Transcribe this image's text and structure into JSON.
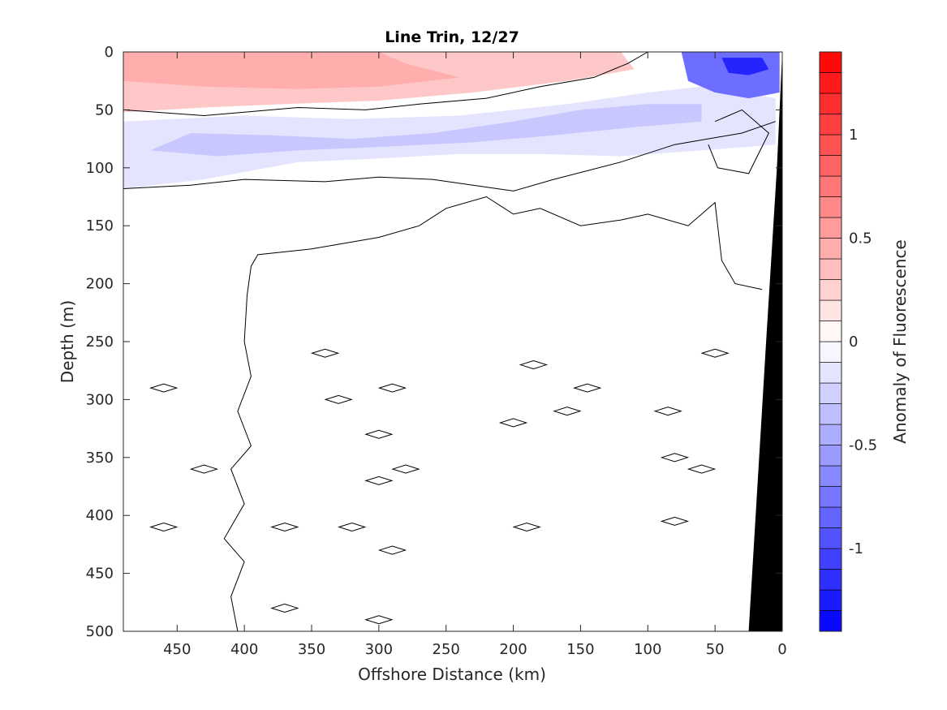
{
  "chart_data": {
    "type": "heatmap",
    "title": "Line Trin, 12/27",
    "xlabel": "Offshore Distance (km)",
    "ylabel": "Depth (m)",
    "colorbar_label": "Anomaly of Fluorescence",
    "x_reversed": true,
    "y_reversed": true,
    "xlim": [
      490,
      0
    ],
    "ylim": [
      500,
      0
    ],
    "xticks": [
      450,
      400,
      350,
      300,
      250,
      200,
      150,
      100,
      50,
      0
    ],
    "xticklabels": [
      "450",
      "400",
      "350",
      "300",
      "250",
      "200",
      "150",
      "100",
      "50",
      "0"
    ],
    "yticks": [
      0,
      50,
      100,
      150,
      200,
      250,
      300,
      350,
      400,
      450,
      500
    ],
    "yticklabels": [
      "0",
      "50",
      "100",
      "150",
      "200",
      "250",
      "300",
      "350",
      "400",
      "450",
      "500"
    ],
    "colorbar": {
      "range": [
        -1.4,
        1.4
      ],
      "ticks": [
        -1,
        -0.5,
        0,
        0.5,
        1
      ],
      "ticklabels": [
        "-1",
        "-0.5",
        "0",
        "0.5",
        "1"
      ],
      "levels": 28,
      "negative_color": "#0000ff",
      "positive_color": "#ff0000",
      "zero_color": "#ffffff"
    },
    "colors": {
      "positive_band": "#f8a8a8",
      "positive_light": "#fde0e0",
      "negative_light": "#e8e8fc",
      "negative_mid": "#c9c9f8",
      "negative_strong": "#2f2ff6",
      "bathymetry": "#000000"
    },
    "filled_regions": [
      {
        "label": "surface positive anomaly",
        "value": 0.3,
        "points": [
          [
            490,
            0
          ],
          [
            120,
            0
          ],
          [
            110,
            15
          ],
          [
            160,
            25
          ],
          [
            230,
            35
          ],
          [
            300,
            42
          ],
          [
            370,
            45
          ],
          [
            430,
            48
          ],
          [
            490,
            52
          ]
        ]
      },
      {
        "label": "surface positive anomaly core",
        "value": 0.45,
        "points": [
          [
            490,
            0
          ],
          [
            300,
            0
          ],
          [
            280,
            10
          ],
          [
            240,
            22
          ],
          [
            300,
            30
          ],
          [
            360,
            32
          ],
          [
            430,
            30
          ],
          [
            490,
            25
          ]
        ]
      },
      {
        "label": "subsurface negative anomaly",
        "value": -0.15,
        "points": [
          [
            490,
            60
          ],
          [
            400,
            55
          ],
          [
            320,
            58
          ],
          [
            240,
            55
          ],
          [
            160,
            45
          ],
          [
            100,
            35
          ],
          [
            60,
            30
          ],
          [
            30,
            35
          ],
          [
            5,
            40
          ],
          [
            5,
            80
          ],
          [
            60,
            85
          ],
          [
            120,
            90
          ],
          [
            180,
            88
          ],
          [
            240,
            88
          ],
          [
            300,
            92
          ],
          [
            360,
            95
          ],
          [
            430,
            110
          ],
          [
            490,
            118
          ]
        ]
      },
      {
        "label": "subsurface negative anomaly core",
        "value": -0.3,
        "points": [
          [
            440,
            70
          ],
          [
            380,
            72
          ],
          [
            320,
            75
          ],
          [
            260,
            70
          ],
          [
            200,
            60
          ],
          [
            150,
            50
          ],
          [
            100,
            45
          ],
          [
            60,
            45
          ],
          [
            60,
            60
          ],
          [
            110,
            65
          ],
          [
            170,
            72
          ],
          [
            230,
            78
          ],
          [
            300,
            82
          ],
          [
            360,
            85
          ],
          [
            420,
            90
          ],
          [
            470,
            85
          ]
        ]
      },
      {
        "label": "nearshore negative anomaly",
        "value": -0.8,
        "points": [
          [
            75,
            0
          ],
          [
            2,
            0
          ],
          [
            2,
            35
          ],
          [
            25,
            40
          ],
          [
            50,
            35
          ],
          [
            70,
            25
          ]
        ]
      },
      {
        "label": "nearshore negative anomaly core",
        "value": -1.2,
        "points": [
          [
            45,
            5
          ],
          [
            15,
            5
          ],
          [
            10,
            15
          ],
          [
            25,
            20
          ],
          [
            40,
            18
          ]
        ]
      }
    ],
    "zero_contours": [
      [
        [
          490,
          50
        ],
        [
          430,
          55
        ],
        [
          400,
          52
        ],
        [
          360,
          48
        ],
        [
          310,
          50
        ],
        [
          270,
          45
        ],
        [
          220,
          40
        ],
        [
          180,
          30
        ],
        [
          140,
          22
        ],
        [
          115,
          10
        ],
        [
          100,
          0
        ]
      ],
      [
        [
          490,
          118
        ],
        [
          440,
          115
        ],
        [
          400,
          110
        ],
        [
          340,
          112
        ],
        [
          300,
          108
        ],
        [
          260,
          110
        ],
        [
          230,
          115
        ],
        [
          200,
          120
        ],
        [
          170,
          110
        ],
        [
          120,
          95
        ],
        [
          80,
          80
        ],
        [
          30,
          70
        ],
        [
          5,
          60
        ]
      ],
      [
        [
          405,
          500
        ],
        [
          410,
          470
        ],
        [
          400,
          440
        ],
        [
          415,
          420
        ],
        [
          400,
          390
        ],
        [
          410,
          360
        ],
        [
          395,
          340
        ],
        [
          405,
          310
        ],
        [
          395,
          280
        ],
        [
          400,
          250
        ],
        [
          398,
          210
        ],
        [
          395,
          185
        ],
        [
          390,
          175
        ],
        [
          350,
          170
        ],
        [
          300,
          160
        ],
        [
          270,
          150
        ],
        [
          250,
          135
        ],
        [
          220,
          125
        ],
        [
          200,
          140
        ],
        [
          180,
          135
        ],
        [
          150,
          150
        ],
        [
          120,
          145
        ],
        [
          100,
          140
        ],
        [
          70,
          150
        ],
        [
          50,
          130
        ],
        [
          45,
          180
        ],
        [
          35,
          200
        ],
        [
          15,
          205
        ]
      ],
      [
        [
          50,
          60
        ],
        [
          30,
          50
        ],
        [
          10,
          70
        ],
        [
          25,
          105
        ],
        [
          48,
          100
        ],
        [
          55,
          80
        ]
      ]
    ],
    "contour_islands": [
      [
        460,
        290
      ],
      [
        430,
        360
      ],
      [
        460,
        410
      ],
      [
        370,
        410
      ],
      [
        340,
        260
      ],
      [
        330,
        300
      ],
      [
        320,
        410
      ],
      [
        300,
        330
      ],
      [
        300,
        370
      ],
      [
        290,
        290
      ],
      [
        290,
        430
      ],
      [
        280,
        360
      ],
      [
        200,
        320
      ],
      [
        185,
        270
      ],
      [
        190,
        410
      ],
      [
        160,
        310
      ],
      [
        145,
        290
      ],
      [
        85,
        310
      ],
      [
        80,
        350
      ],
      [
        80,
        405
      ],
      [
        60,
        360
      ],
      [
        50,
        260
      ],
      [
        370,
        480
      ],
      [
        300,
        490
      ]
    ],
    "bathymetry": {
      "label": "seafloor",
      "points": [
        [
          0,
          0
        ],
        [
          0,
          500
        ],
        [
          25,
          500
        ],
        [
          12,
          250
        ],
        [
          4,
          100
        ]
      ]
    }
  }
}
